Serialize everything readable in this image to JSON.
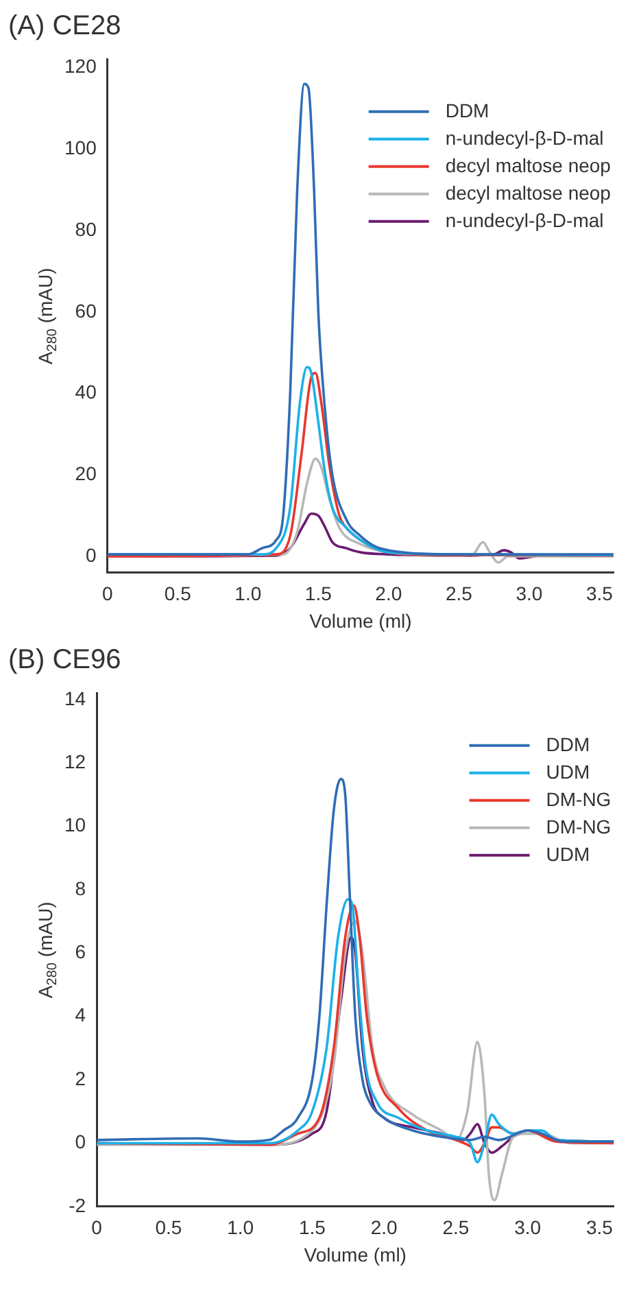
{
  "chart_data": [
    {
      "type": "line",
      "title": "(A) CE28",
      "xlabel": "Volume (ml)",
      "ylabel": "A$_{280}$ (mAU)",
      "xlim": [
        0,
        3.6
      ],
      "xticks": [
        0,
        0.5,
        {
          "value": 1,
          "label": "1.0"
        },
        1.5,
        {
          "value": 2,
          "label": "2.0"
        },
        2.5,
        {
          "value": 3,
          "label": "3.0"
        },
        3.5
      ],
      "ylim": [
        -4,
        122
      ],
      "yticks": [
        0,
        20,
        40,
        60,
        80,
        100,
        120
      ],
      "grid": false,
      "legend": "top right",
      "marker": "none",
      "line_style": "solid",
      "series": [
        {
          "name": "DDM",
          "color": "#2f6db5",
          "x": [
            0,
            1.0,
            1.1,
            1.2,
            1.25,
            1.3,
            1.35,
            1.4,
            1.43,
            1.47,
            1.5,
            1.55,
            1.6,
            1.7,
            1.8,
            1.9,
            2.0,
            2.5,
            3.6
          ],
          "values": [
            0.5,
            0.5,
            2,
            4,
            10,
            40,
            90,
            116,
            115,
            90,
            60,
            35,
            20,
            9,
            5,
            2.5,
            1.5,
            0.5,
            0.5
          ]
        },
        {
          "name": "n-undecyl-β-D-mal",
          "color": "#1ab1e8",
          "x": [
            0,
            1.1,
            1.2,
            1.3,
            1.37,
            1.42,
            1.45,
            1.5,
            1.55,
            1.6,
            1.7,
            1.8,
            1.9,
            2.0,
            2.5,
            3.6
          ],
          "values": [
            0.5,
            0.5,
            2,
            12,
            38,
            46.5,
            45,
            33,
            20,
            12,
            7,
            4,
            2,
            1,
            0.5,
            0.3
          ]
        },
        {
          "name": "decyl maltose neop",
          "color": "#e8382e",
          "x": [
            0,
            1.2,
            1.3,
            1.38,
            1.45,
            1.48,
            1.52,
            1.58,
            1.65,
            1.7,
            1.8,
            1.9,
            2.0,
            2.5,
            2.7,
            3.6
          ],
          "values": [
            0,
            0.5,
            5,
            25,
            44,
            45,
            38,
            22,
            10,
            7,
            4,
            2,
            1,
            0.3,
            0.3,
            0.2
          ]
        },
        {
          "name": "decyl maltose neop",
          "color": "#b8b8b8",
          "x": [
            0,
            1.25,
            1.35,
            1.42,
            1.48,
            1.52,
            1.58,
            1.65,
            1.8,
            2.0,
            2.5,
            2.6,
            2.67,
            2.72,
            2.78,
            2.85,
            3.0,
            3.6
          ],
          "values": [
            0,
            0.5,
            6,
            18,
            24,
            22,
            14,
            7,
            3,
            1,
            0.2,
            0.5,
            3.5,
            1,
            -1.5,
            0,
            0,
            0
          ]
        },
        {
          "name": "n-undecyl-β-D-mal",
          "color": "#6a1b6e",
          "x": [
            0,
            1.2,
            1.3,
            1.4,
            1.45,
            1.5,
            1.55,
            1.6,
            1.7,
            1.8,
            2.0,
            2.5,
            2.75,
            2.82,
            2.87,
            2.93,
            3.0,
            3.1,
            3.6
          ],
          "values": [
            0,
            0.2,
            2,
            8,
            10.5,
            10,
            7,
            3.5,
            2,
            1,
            0.5,
            0.2,
            0.5,
            1.5,
            1,
            -0.5,
            -0.2,
            0.3,
            0.3
          ]
        }
      ]
    },
    {
      "type": "line",
      "title": "(B) CE96",
      "xlabel": "Volume (ml)",
      "ylabel": "A$_{280}$ (mAU)",
      "xlim": [
        0,
        3.6
      ],
      "xticks": [
        0,
        0.5,
        {
          "value": 1,
          "label": "1.0"
        },
        1.5,
        {
          "value": 2,
          "label": "2.0"
        },
        2.5,
        {
          "value": 3,
          "label": "3.0"
        },
        3.5
      ],
      "ylim": [
        -2,
        14.2
      ],
      "yticks": [
        -2,
        0,
        2,
        4,
        6,
        8,
        10,
        12,
        14
      ],
      "grid": false,
      "legend": "top right",
      "marker": "none",
      "line_style": "solid",
      "series": [
        {
          "name": "DDM",
          "color": "#2f6db5",
          "x": [
            0,
            0.7,
            1.0,
            1.2,
            1.3,
            1.4,
            1.5,
            1.55,
            1.6,
            1.65,
            1.7,
            1.73,
            1.76,
            1.8,
            1.85,
            1.9,
            2.0,
            2.2,
            2.4,
            2.6,
            2.7,
            2.8,
            3.0,
            3.1,
            3.25,
            3.6
          ],
          "values": [
            0.1,
            0.15,
            0.05,
            0.1,
            0.4,
            0.8,
            2.0,
            4,
            7.5,
            10.5,
            11.5,
            11,
            8,
            4,
            2,
            1.3,
            0.8,
            0.4,
            0.2,
            0.1,
            0.2,
            0.1,
            0.4,
            0.3,
            0.05,
            0.05
          ]
        },
        {
          "name": "UDM",
          "color": "#1ab1e8",
          "x": [
            0,
            1.2,
            1.4,
            1.5,
            1.6,
            1.68,
            1.75,
            1.78,
            1.82,
            1.87,
            1.95,
            2.1,
            2.3,
            2.5,
            2.6,
            2.65,
            2.7,
            2.75,
            2.8,
            2.9,
            3.0,
            3.1,
            3.2,
            3.6
          ],
          "values": [
            0,
            0,
            0.4,
            1,
            3,
            6.5,
            7.7,
            7.5,
            5,
            2.5,
            1.3,
            0.8,
            0.4,
            0.2,
            0,
            -0.6,
            0,
            0.9,
            0.6,
            0.3,
            0.4,
            0.4,
            0.1,
            0.05
          ]
        },
        {
          "name": "DM-NG",
          "color": "#e8382e",
          "x": [
            0,
            1.2,
            1.4,
            1.55,
            1.65,
            1.73,
            1.79,
            1.83,
            1.88,
            1.95,
            2.1,
            2.3,
            2.5,
            2.6,
            2.65,
            2.7,
            2.75,
            2.8,
            2.9,
            3.0,
            3.2,
            3.6
          ],
          "values": [
            0,
            -0.05,
            0.3,
            0.8,
            3,
            6.5,
            7.5,
            6.5,
            4,
            2.2,
            1.1,
            0.4,
            0.1,
            -0.1,
            -0.3,
            0,
            0.5,
            0.5,
            0.3,
            0.4,
            0.05,
            0
          ]
        },
        {
          "name": "DM-NG",
          "color": "#b8b8b8",
          "x": [
            0,
            1.2,
            1.5,
            1.65,
            1.73,
            1.8,
            1.85,
            1.92,
            2.0,
            2.2,
            2.4,
            2.5,
            2.58,
            2.65,
            2.7,
            2.73,
            2.77,
            2.82,
            2.9,
            3.0,
            3.1,
            3.3,
            3.6
          ],
          "values": [
            -0.05,
            -0.05,
            0.4,
            2.5,
            6,
            7,
            6,
            3,
            1.8,
            0.9,
            0.4,
            0.1,
            1,
            3.2,
            1.5,
            -1,
            -1.8,
            -1,
            0.2,
            0.3,
            0.3,
            0,
            0
          ]
        },
        {
          "name": "UDM",
          "color": "#6a1b6e",
          "x": [
            0,
            1.2,
            1.5,
            1.6,
            1.7,
            1.77,
            1.8,
            1.85,
            1.92,
            2.0,
            2.2,
            2.4,
            2.55,
            2.6,
            2.65,
            2.7,
            2.75,
            2.82,
            2.9,
            3.0,
            3.1,
            3.2,
            3.6
          ],
          "values": [
            0,
            -0.05,
            0.3,
            1,
            4.5,
            6.5,
            6,
            3,
            1.3,
            0.8,
            0.5,
            0.3,
            0.1,
            0.3,
            0.6,
            0,
            -0.3,
            -0.1,
            0.2,
            0.4,
            0.3,
            0.1,
            0.05
          ]
        }
      ]
    }
  ]
}
